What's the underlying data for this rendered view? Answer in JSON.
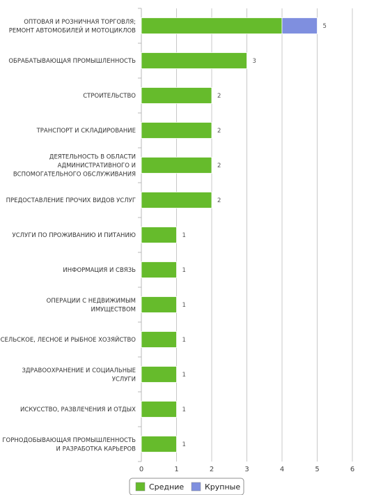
{
  "chart_data": {
    "type": "bar",
    "orientation": "horizontal",
    "stacked": true,
    "categories": [
      [
        "ОПТОВАЯ И РОЗНИЧНАЯ ТОРГОВЛЯ;",
        "РЕМОНТ АВТОМОБИЛЕЙ И МОТОЦИКЛОВ"
      ],
      [
        "ОБРАБАТЫВАЮЩАЯ ПРОМЫШЛЕННОСТЬ"
      ],
      [
        "СТРОИТЕЛЬСТВО"
      ],
      [
        "ТРАНСПОРТ И СКЛАДИРОВАНИЕ"
      ],
      [
        "ДЕЯТЕЛЬНОСТЬ В ОБЛАСТИ",
        "АДМИНИСТРАТИВНОГО И",
        "ВСПОМОГАТЕЛЬНОГО ОБСЛУЖИВАНИЯ"
      ],
      [
        "ПРЕДОСТАВЛЕНИЕ ПРОЧИХ ВИДОВ УСЛУГ"
      ],
      [
        "УСЛУГИ ПО ПРОЖИВАНИЮ И ПИТАНИЮ"
      ],
      [
        "ИНФОРМАЦИЯ И СВЯЗЬ"
      ],
      [
        "ОПЕРАЦИИ С НЕДВИЖИМЫМ",
        "ИМУЩЕСТВОМ"
      ],
      [
        "СЕЛЬСКОЕ, ЛЕСНОЕ И РЫБНОЕ ХОЗЯЙСТВО"
      ],
      [
        "ЗДРАВООХРАНЕНИЕ И СОЦИАЛЬНЫЕ",
        "УСЛУГИ"
      ],
      [
        "ИСКУССТВО, РАЗВЛЕЧЕНИЯ И ОТДЫХ"
      ],
      [
        "ГОРНОДОБЫВАЮЩАЯ ПРОМЫШЛЕННОСТЬ",
        "И РАЗРАБОТКА КАРЬЕРОВ"
      ]
    ],
    "series": [
      {
        "name": "Средние",
        "color": "#66bb2c",
        "values": [
          4,
          3,
          2,
          2,
          2,
          2,
          1,
          1,
          1,
          1,
          1,
          1,
          1
        ]
      },
      {
        "name": "Крупные",
        "color": "#7f8fdf",
        "values": [
          1,
          0,
          0,
          0,
          0,
          0,
          0,
          0,
          0,
          0,
          0,
          0,
          0
        ]
      }
    ],
    "totals": [
      "5",
      "3",
      "2",
      "2",
      "2",
      "2",
      "1",
      "1",
      "1",
      "1",
      "1",
      "1",
      "1"
    ],
    "xticks": [
      "0",
      "1",
      "2",
      "3",
      "4",
      "5",
      "6"
    ],
    "xlim": [
      0,
      6
    ],
    "grid": true,
    "legend_position": "bottom-center"
  }
}
